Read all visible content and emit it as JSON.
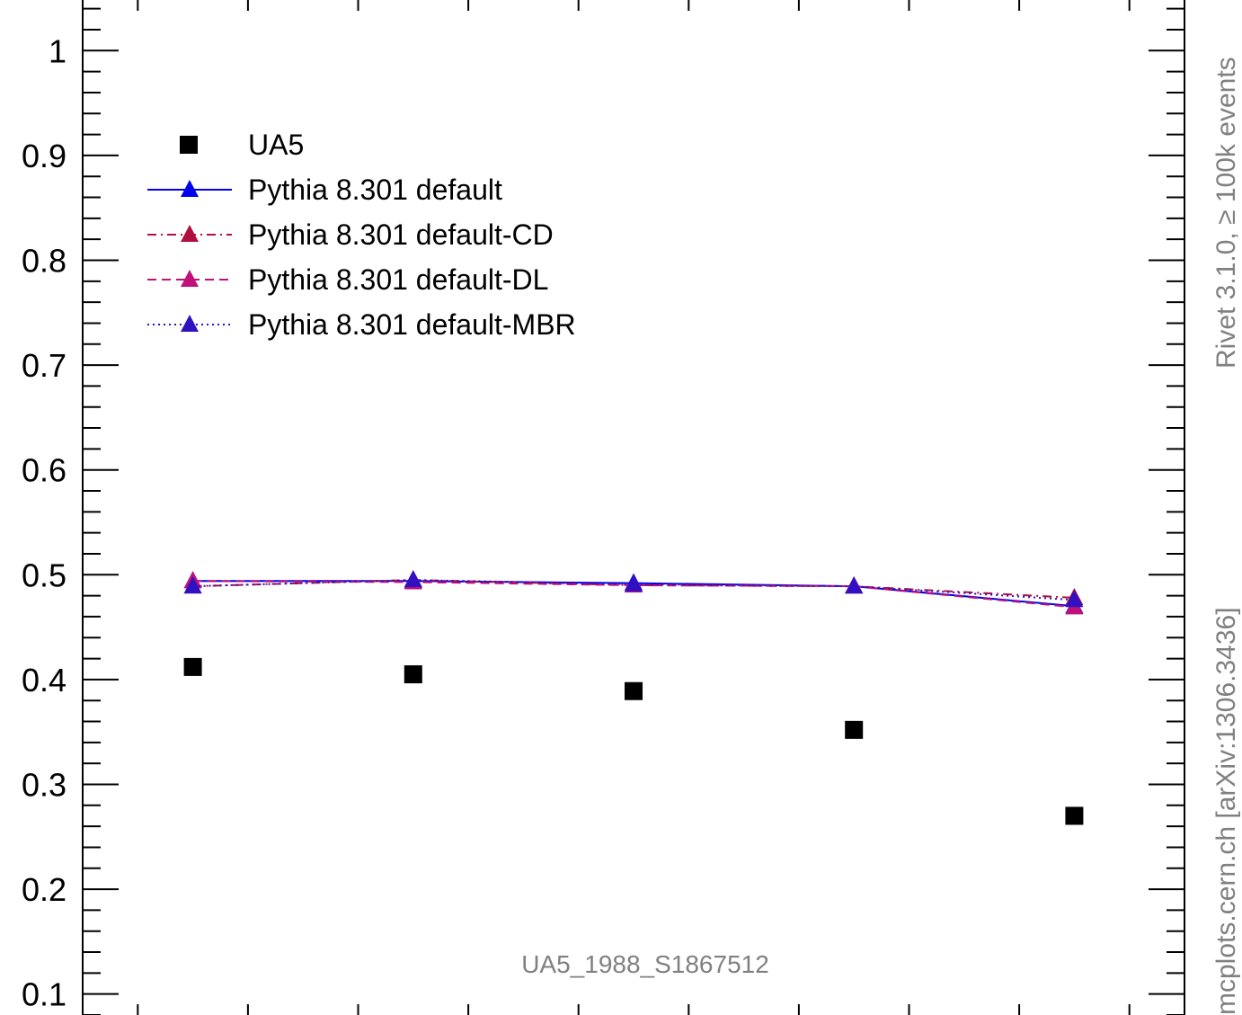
{
  "chart_data": {
    "type": "scatter",
    "x": [
      1,
      2,
      3,
      4,
      5
    ],
    "xlim": [
      0.5,
      5.5
    ],
    "ylim": [
      0.08,
      1.05
    ],
    "yticks": [
      0.1,
      0.2,
      0.3,
      0.4,
      0.5,
      0.6,
      0.7,
      0.8,
      0.9,
      1
    ],
    "ytick_labels": [
      "0.1",
      "0.2",
      "0.3",
      "0.4",
      "0.5",
      "0.6",
      "0.7",
      "0.8",
      "0.9",
      "1"
    ],
    "grid": false,
    "legend_position": "top-left",
    "series": [
      {
        "name": "UA5",
        "style": "marker-square",
        "color": "#000000",
        "values": [
          0.412,
          0.405,
          0.389,
          0.352,
          0.27
        ]
      },
      {
        "name": "Pythia 8.301 default",
        "style": "solid",
        "color": "#0000ee",
        "values": [
          0.494,
          0.494,
          0.492,
          0.489,
          0.47
        ]
      },
      {
        "name": "Pythia 8.301 default-CD",
        "style": "dashdot",
        "color": "#b01040",
        "values": [
          0.489,
          0.495,
          0.49,
          0.489,
          0.478
        ]
      },
      {
        "name": "Pythia 8.301 default-DL",
        "style": "dashed",
        "color": "#c0107a",
        "values": [
          0.494,
          0.493,
          0.49,
          0.489,
          0.469
        ]
      },
      {
        "name": "Pythia 8.301 default-MBR",
        "style": "dotted",
        "color": "#3010c0",
        "values": [
          0.489,
          0.495,
          0.491,
          0.489,
          0.476
        ]
      }
    ]
  },
  "annotations": {
    "analysis_id": "UA5_1988_S1867512",
    "side_text": "mcplots.cern.ch [arXiv:1306.3436]",
    "side_text_top": "Rivet 3.1.0, ≥ 100k events"
  }
}
